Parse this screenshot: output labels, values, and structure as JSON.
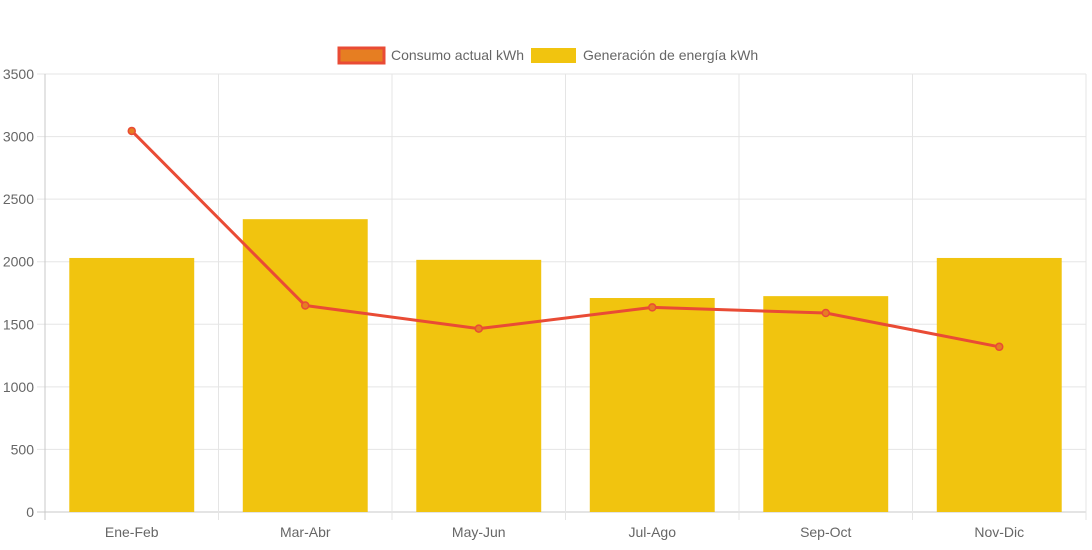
{
  "chart_data": {
    "type": "bar",
    "categories": [
      "Ene-Feb",
      "Mar-Abr",
      "May-Jun",
      "Jul-Ago",
      "Sep-Oct",
      "Nov-Dic"
    ],
    "series": [
      {
        "name": "Consumo actual kWh",
        "type": "line",
        "values": [
          3045,
          1650,
          1465,
          1635,
          1590,
          1320
        ],
        "color": "#e94b35",
        "point_fill": "#e67e22"
      },
      {
        "name": "Generación de energía kWh",
        "type": "bar",
        "values": [
          2030,
          2340,
          2015,
          1710,
          1725,
          2030
        ],
        "color": "#f1c40f"
      }
    ],
    "ylim": [
      0,
      3500
    ],
    "yticks": [
      "0",
      "500",
      "1000",
      "1500",
      "2000",
      "2500",
      "3000",
      "3500"
    ],
    "grid": true,
    "legend": "top-center",
    "title": "",
    "xlabel": "",
    "ylabel": ""
  }
}
